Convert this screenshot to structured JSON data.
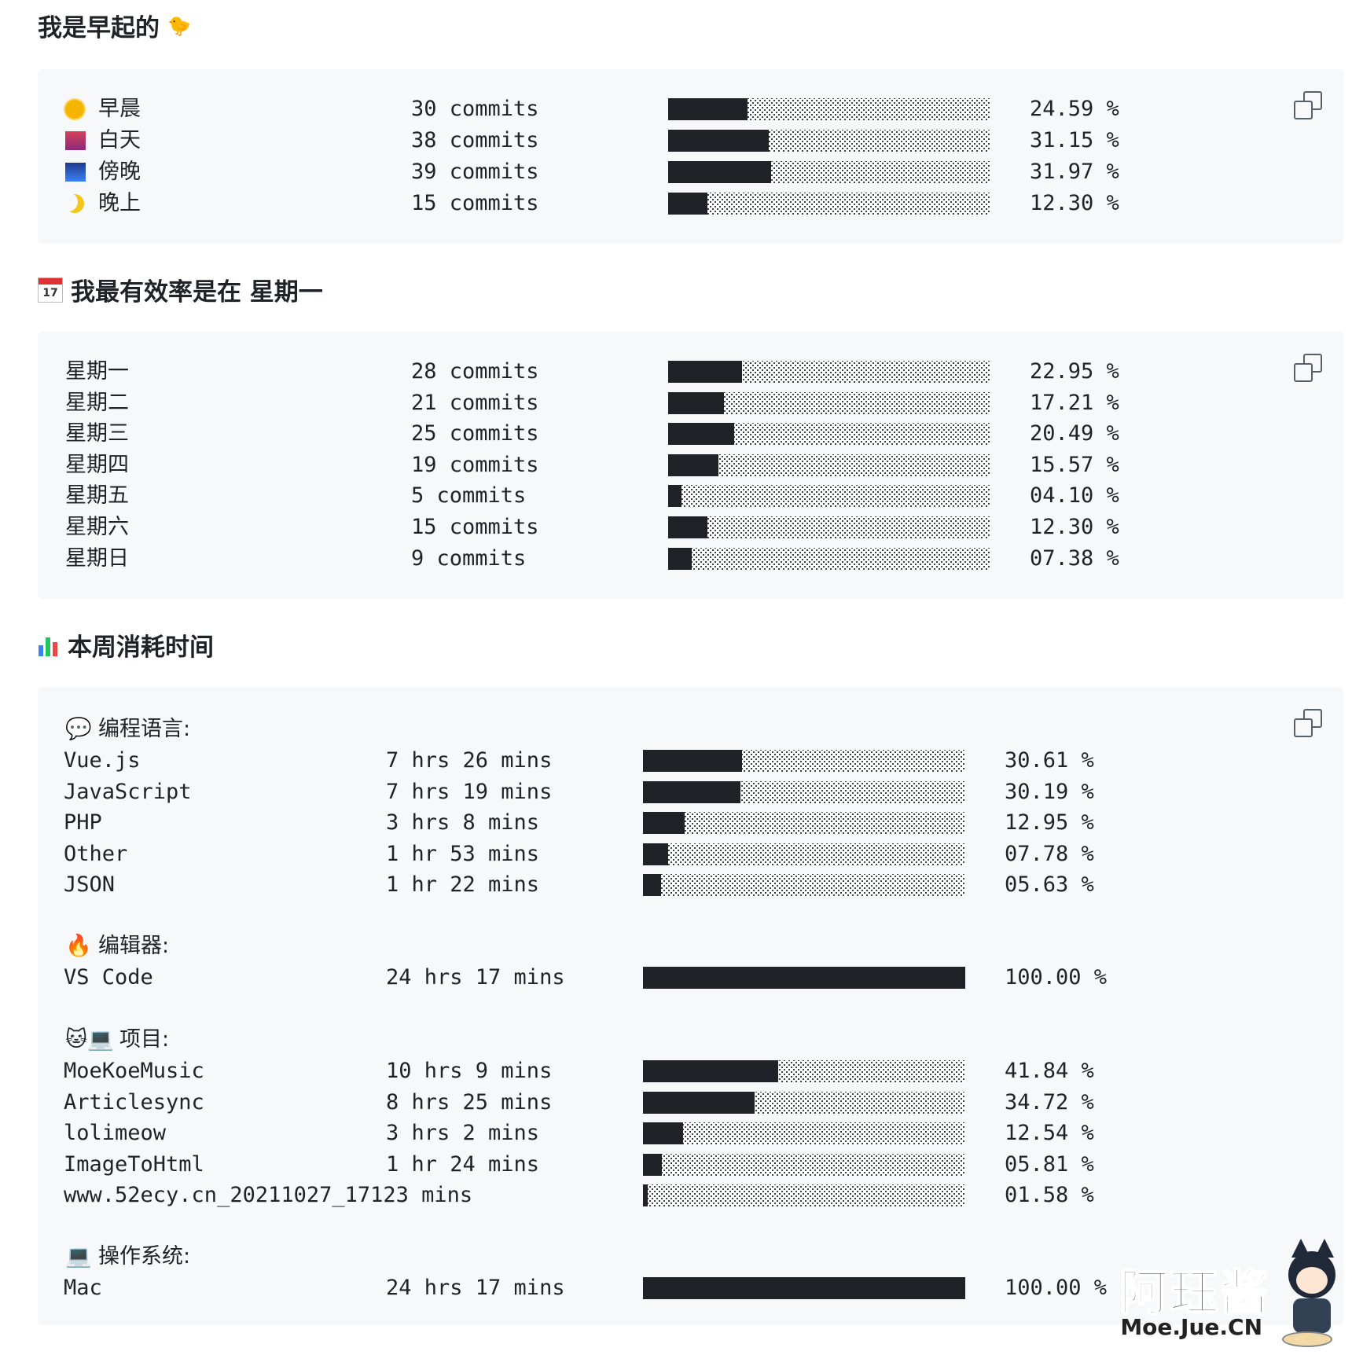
{
  "sections": {
    "early": {
      "title": "我是早起的",
      "title_emoji": "🐤",
      "rows": [
        {
          "emoji": "🌞",
          "label": "早晨",
          "count": "30 commits",
          "pct": "24.59 %",
          "value": 24.59
        },
        {
          "emoji": "🌆",
          "label": "白天",
          "count": "38 commits",
          "pct": "31.15 %",
          "value": 31.15
        },
        {
          "emoji": "🌃",
          "label": "傍晚",
          "count": "39 commits",
          "pct": "31.97 %",
          "value": 31.97
        },
        {
          "emoji": "🌙",
          "label": "晚上",
          "count": "15 commits",
          "pct": "12.30 %",
          "value": 12.3
        }
      ]
    },
    "weekday": {
      "title_emoji": "📅",
      "title": "我最有效率是在 星期一",
      "rows": [
        {
          "label": "星期一",
          "count": "28 commits",
          "pct": "22.95 %",
          "value": 22.95
        },
        {
          "label": "星期二",
          "count": "21 commits",
          "pct": "17.21 %",
          "value": 17.21
        },
        {
          "label": "星期三",
          "count": "25 commits",
          "pct": "20.49 %",
          "value": 20.49
        },
        {
          "label": "星期四",
          "count": "19 commits",
          "pct": "15.57 %",
          "value": 15.57
        },
        {
          "label": "星期五",
          "count": "5 commits",
          "pct": "04.10 %",
          "value": 4.1
        },
        {
          "label": "星期六",
          "count": "15 commits",
          "pct": "12.30 %",
          "value": 12.3
        },
        {
          "label": "星期日",
          "count": "9 commits",
          "pct": "07.38 %",
          "value": 7.38
        }
      ]
    },
    "time": {
      "title_emoji": "📊",
      "title": "本周消耗时间",
      "groups": [
        {
          "emoji": "💬",
          "label": "编程语言:",
          "rows": [
            {
              "name": "Vue.js",
              "time": "7 hrs 26 mins",
              "pct": "30.61 %",
              "value": 30.61
            },
            {
              "name": "JavaScript",
              "time": "7 hrs 19 mins",
              "pct": "30.19 %",
              "value": 30.19
            },
            {
              "name": "PHP",
              "time": "3 hrs 8 mins",
              "pct": "12.95 %",
              "value": 12.95
            },
            {
              "name": "Other",
              "time": "1 hr 53 mins",
              "pct": "07.78 %",
              "value": 7.78
            },
            {
              "name": "JSON",
              "time": "1 hr 22 mins",
              "pct": "05.63 %",
              "value": 5.63
            }
          ]
        },
        {
          "emoji": "🔥",
          "label": "编辑器:",
          "rows": [
            {
              "name": "VS Code",
              "time": "24 hrs 17 mins",
              "pct": "100.00 %",
              "value": 100
            }
          ]
        },
        {
          "emoji": "🐱💻",
          "label": "项目:",
          "rows": [
            {
              "name": "MoeKoeMusic",
              "time": "10 hrs 9 mins",
              "pct": "41.84 %",
              "value": 41.84
            },
            {
              "name": "Articlesync",
              "time": "8 hrs 25 mins",
              "pct": "34.72 %",
              "value": 34.72
            },
            {
              "name": "lolimeow",
              "time": "3 hrs 2 mins",
              "pct": "12.54 %",
              "value": 12.54
            },
            {
              "name": "ImageToHtml",
              "time": "1 hr 24 mins",
              "pct": "05.81 %",
              "value": 5.81
            },
            {
              "name": "www.52ecy.cn_20211027_17123 mins",
              "time": "",
              "pct": "01.58 %",
              "value": 1.58
            }
          ]
        },
        {
          "emoji": "💻",
          "label": "操作系统:",
          "rows": [
            {
              "name": "Mac",
              "time": "24 hrs 17 mins",
              "pct": "100.00 %",
              "value": 100
            }
          ]
        }
      ]
    }
  },
  "watermark": {
    "title": "阿珏酱",
    "subtitle": "Moe.Jue.CN"
  },
  "colors": {
    "block_bg": "#f6f8fa",
    "bar_fill": "#1f2328",
    "text": "#1f2328"
  }
}
